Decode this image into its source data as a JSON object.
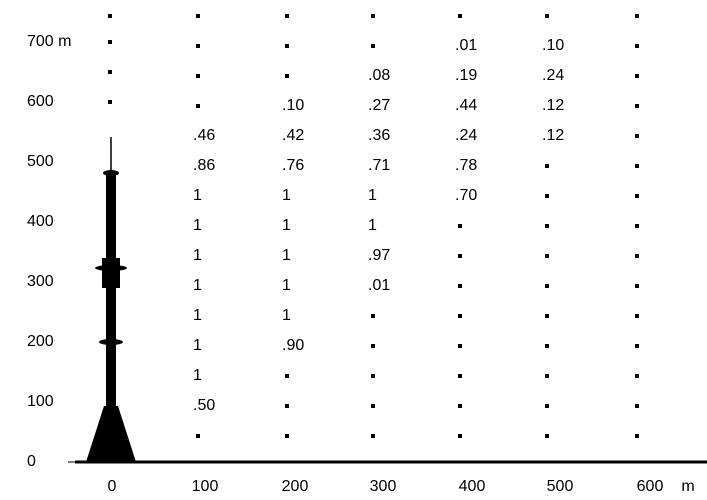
{
  "x_axis": {
    "ticks": [
      "0",
      "100",
      "200",
      "300",
      "400",
      "500",
      "600"
    ],
    "unit": "m"
  },
  "y_axis": {
    "ticks": [
      "0",
      "100",
      "200",
      "300",
      "400",
      "500",
      "600",
      "700 m"
    ]
  },
  "rows": [
    [
      null,
      null,
      null,
      null,
      null,
      null
    ],
    [
      null,
      null,
      null,
      ".01",
      ".10",
      null
    ],
    [
      null,
      null,
      ".08",
      ".19",
      ".24",
      null
    ],
    [
      null,
      ".10",
      ".27",
      ".44",
      ".12",
      null
    ],
    [
      ".46",
      ".42",
      ".36",
      ".24",
      ".12",
      null
    ],
    [
      ".86",
      ".76",
      ".71",
      ".78",
      null,
      null
    ],
    [
      "1",
      "1",
      "1",
      ".70",
      null,
      null
    ],
    [
      "1",
      "1",
      "1",
      null,
      null,
      null
    ],
    [
      "1",
      "1",
      ".97",
      null,
      null,
      null
    ],
    [
      "1",
      "1",
      ".01",
      null,
      null,
      null
    ],
    [
      "1",
      "1",
      null,
      null,
      null,
      null
    ],
    [
      "1",
      ".90",
      null,
      null,
      null,
      null
    ],
    [
      "1",
      null,
      null,
      null,
      null,
      null
    ],
    [
      ".50",
      null,
      null,
      null,
      null,
      null
    ],
    [
      null,
      null,
      null,
      null,
      null,
      null
    ]
  ]
}
